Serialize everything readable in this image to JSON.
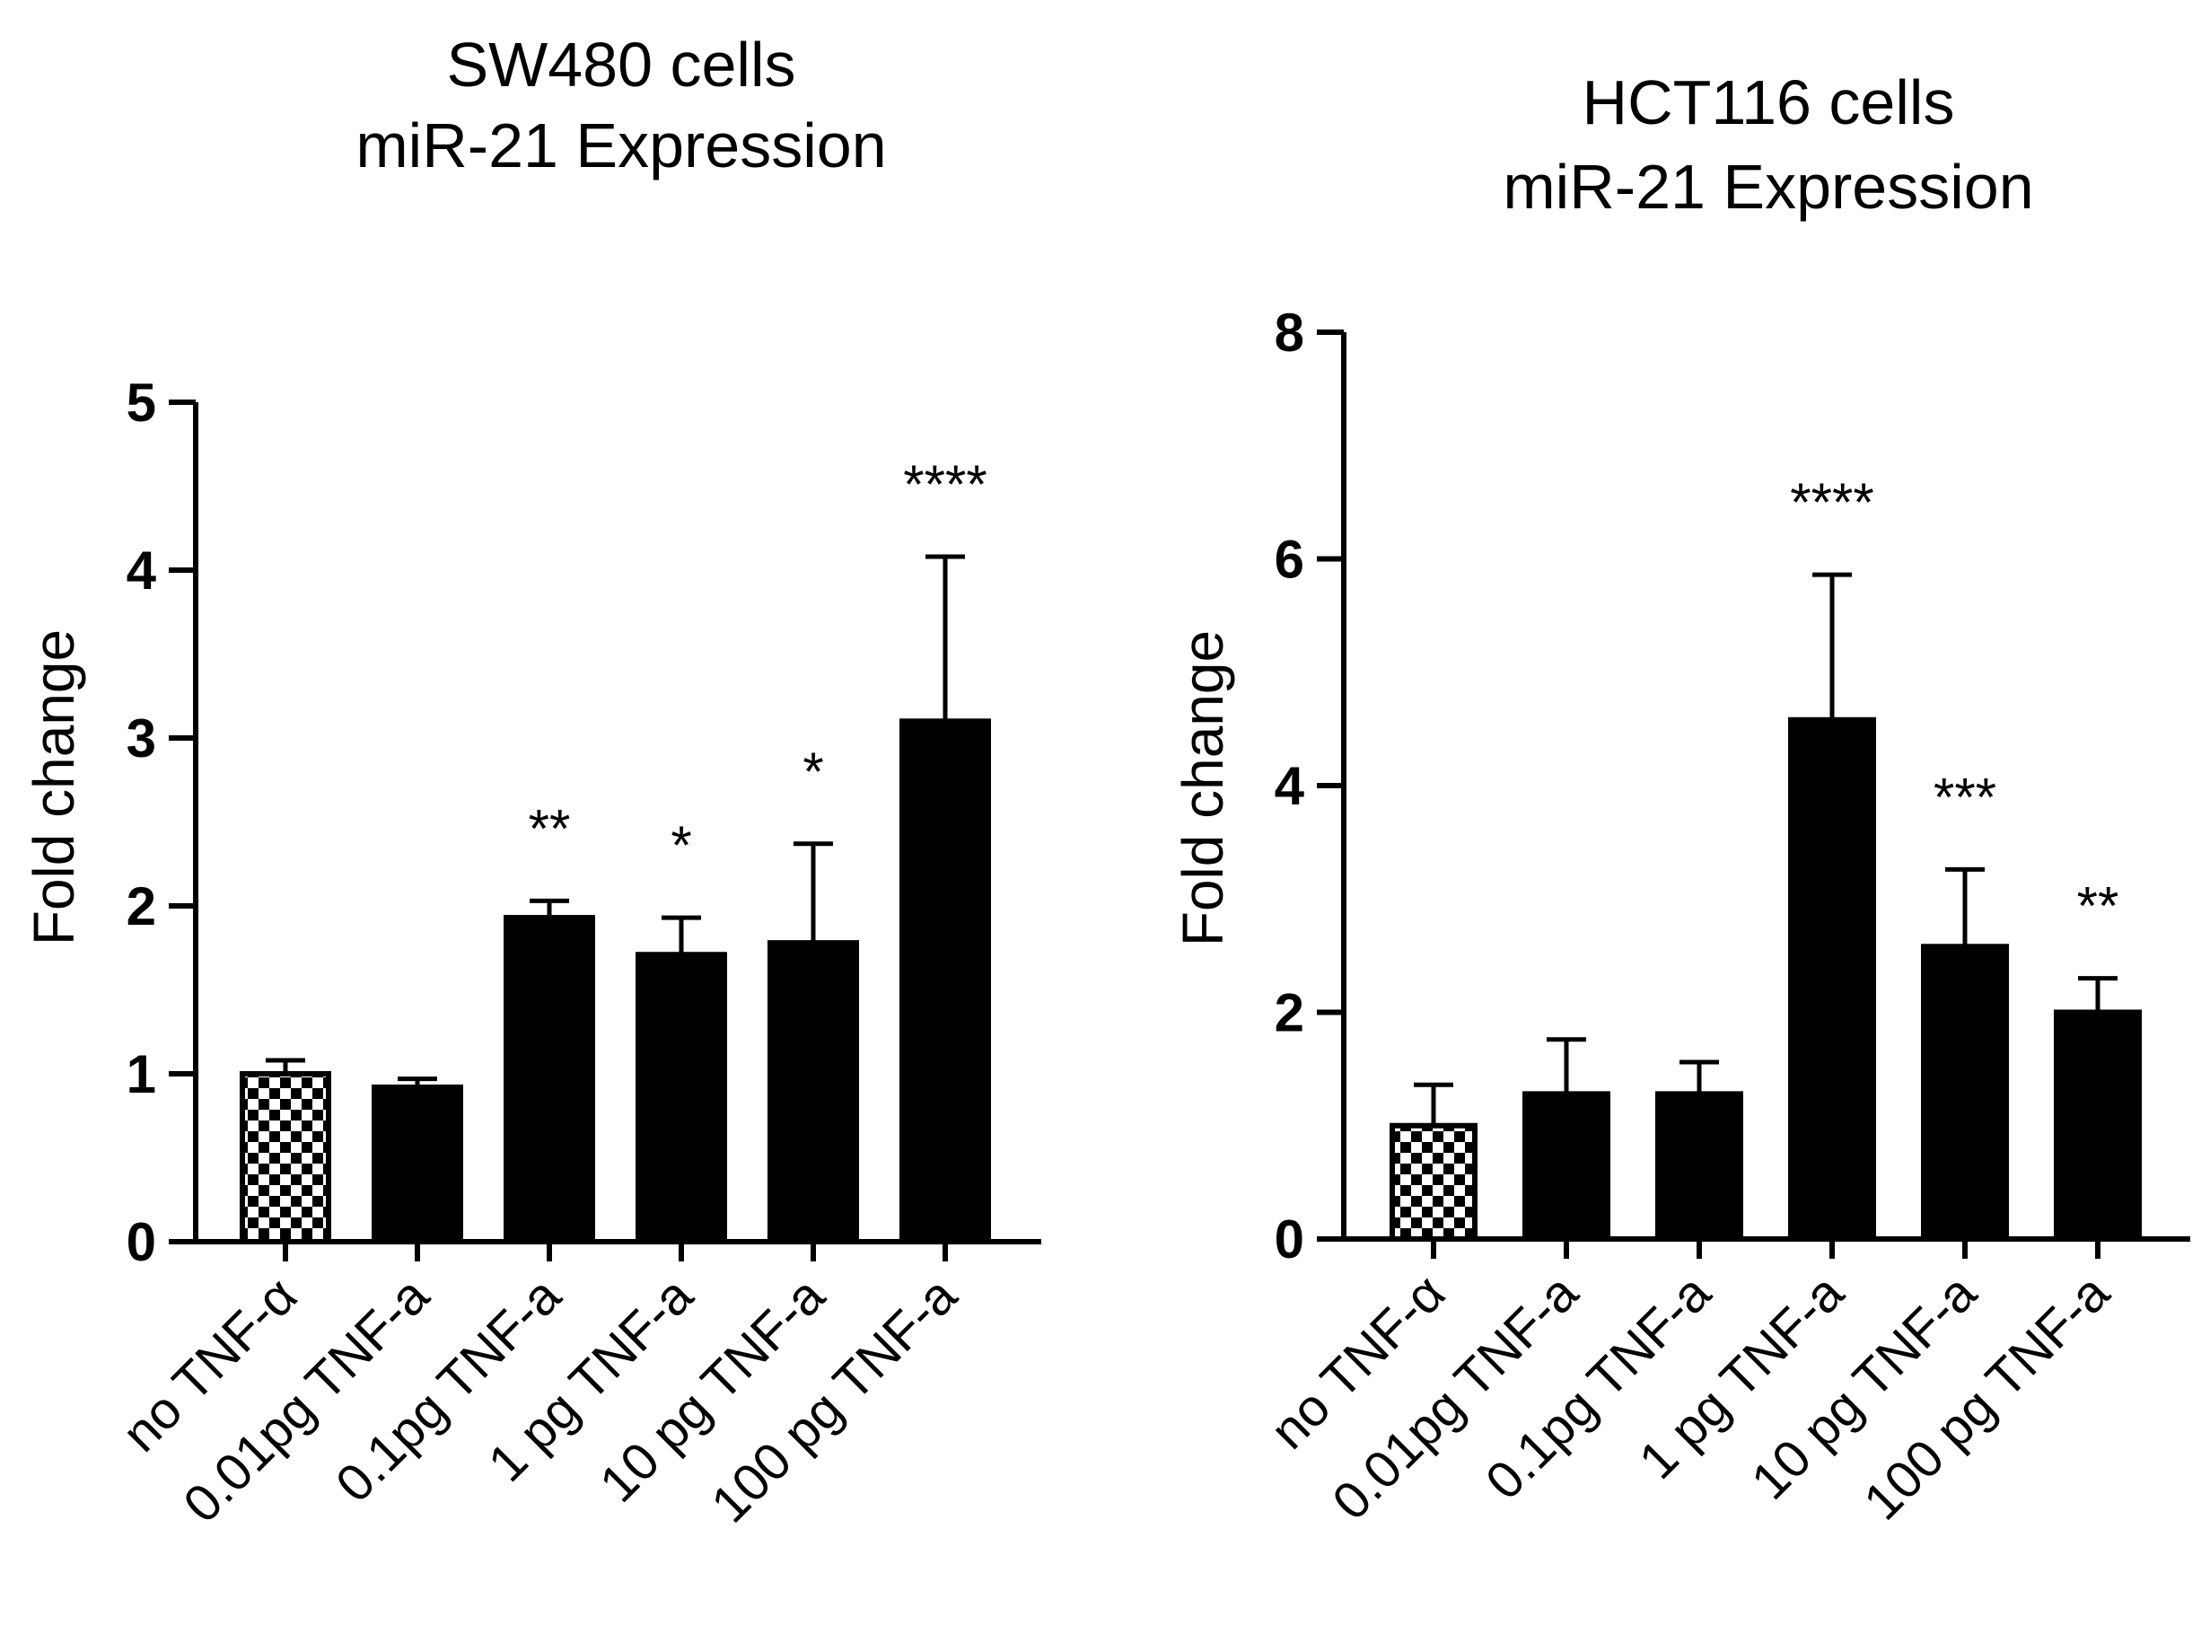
{
  "chart_data": [
    {
      "type": "bar",
      "title": [
        "SW480 cells",
        "miR-21  Expression"
      ],
      "xlabel": "",
      "ylabel": "Fold change",
      "ylim": [
        0,
        5
      ],
      "yticks": [
        "0",
        "1",
        "2",
        "3",
        "4",
        "5"
      ],
      "categories": [
        "no TNF-α",
        "0.01pg TNF-a",
        "0.1pg TNF-a",
        "1 pg TNF-a",
        "10 pg TNF-a",
        "100 pg TNF-a"
      ],
      "values": [
        1.0,
        0.92,
        1.93,
        1.71,
        1.78,
        3.1
      ],
      "errors": [
        0.08,
        0.05,
        0.1,
        0.22,
        0.59,
        0.98
      ],
      "significance": [
        "",
        "",
        "**",
        "*",
        "*",
        "****"
      ],
      "fills": [
        "checker",
        "solid",
        "solid",
        "solid",
        "solid",
        "solid"
      ]
    },
    {
      "type": "bar",
      "title": [
        "HCT116 cells",
        "miR-21 Expression"
      ],
      "xlabel": "",
      "ylabel": "Fold change",
      "ylim": [
        0,
        8
      ],
      "yticks": [
        "0",
        "2",
        "4",
        "6",
        "8"
      ],
      "categories": [
        "no TNF-α",
        "0.01pg TNF-a",
        "0.1pg TNF-a",
        "1 pg TNF-a",
        "10 pg TNF-a",
        "100 pg TNF-a"
      ],
      "values": [
        1.0,
        1.28,
        1.28,
        4.58,
        2.58,
        2.0
      ],
      "errors": [
        0.36,
        0.48,
        0.28,
        1.28,
        0.68,
        0.3
      ],
      "significance": [
        "",
        "",
        "",
        "****",
        "***",
        "**"
      ],
      "fills": [
        "checker",
        "solid",
        "solid",
        "solid",
        "solid",
        "solid"
      ]
    }
  ],
  "colors": {
    "bar": "#000000",
    "checker_light": "#ffffff",
    "checker_dark": "#000000",
    "axis": "#000000"
  }
}
